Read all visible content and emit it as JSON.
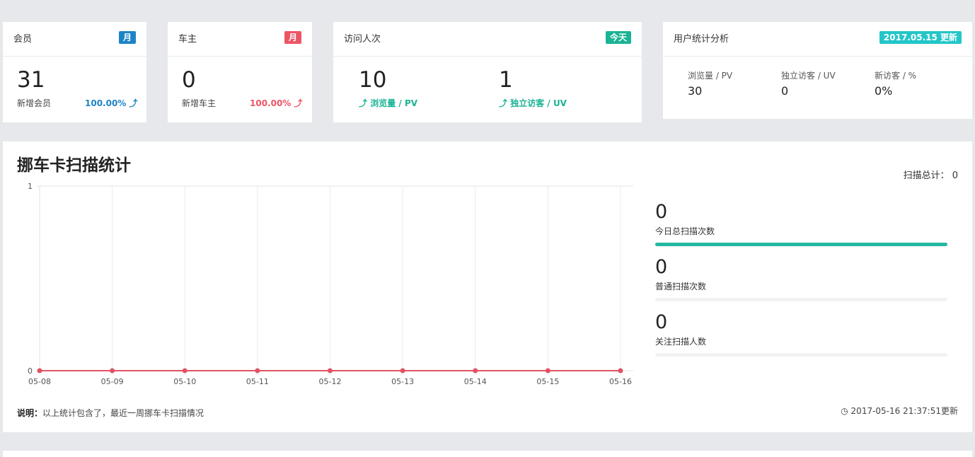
{
  "cards": {
    "member": {
      "title": "会员",
      "badge": "月",
      "badge_color": "#1c84c6",
      "value": "31",
      "sub_label": "新增会员",
      "percent": "100.00%",
      "percent_color": "#1c84c6"
    },
    "owner": {
      "title": "车主",
      "badge": "月",
      "badge_color": "#ed5565",
      "value": "0",
      "sub_label": "新增车主",
      "percent": "100.00%",
      "percent_color": "#ed5565"
    },
    "visits": {
      "title": "访问人次",
      "badge": "今天",
      "badge_color": "#1ab394",
      "pv_value": "10",
      "pv_label": "浏览量 / PV",
      "uv_value": "1",
      "uv_label": "独立访客 / UV",
      "label_color": "#1ab394"
    },
    "user_stats": {
      "title": "用户统计分析",
      "badge": "2017.05.15 更新",
      "badge_color": "#23c6c8",
      "items": [
        {
          "label": "浏览量 / PV",
          "value": "30"
        },
        {
          "label": "独立访客 / UV",
          "value": "0"
        },
        {
          "label": "新访客 / %",
          "value": "0%"
        }
      ]
    }
  },
  "scan_panel": {
    "title": "挪车卡扫描统计",
    "total_label": "扫描总计：",
    "total_value": "0",
    "stats": [
      {
        "value": "0",
        "label": "今日总扫描次数",
        "progress": 1.0
      },
      {
        "value": "0",
        "label": "普通扫描次数",
        "progress": 0.0
      },
      {
        "value": "0",
        "label": "关注扫描人数",
        "progress": 0.0
      }
    ],
    "note_label": "说明：",
    "note_text": "以上统计包含了，最近一周挪车卡扫描情况",
    "updated_text": "2017-05-16 21:37:51更新",
    "icon_clock": "clock-icon",
    "icon_arrow": "arrow-up-icon"
  },
  "chart_data": {
    "type": "line",
    "categories": [
      "05-08",
      "05-09",
      "05-10",
      "05-11",
      "05-12",
      "05-13",
      "05-14",
      "05-15",
      "05-16"
    ],
    "series": [
      {
        "values": [
          0,
          0,
          0,
          0,
          0,
          0,
          0,
          0,
          0
        ],
        "color": "#e05364"
      }
    ],
    "ylim": [
      0,
      1
    ],
    "yticks": [
      0,
      1
    ],
    "grid": true
  }
}
